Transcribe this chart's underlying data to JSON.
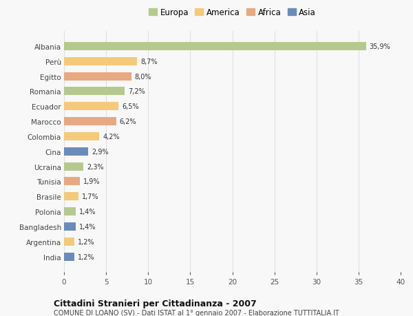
{
  "countries": [
    "Albania",
    "Perù",
    "Egitto",
    "Romania",
    "Ecuador",
    "Marocco",
    "Colombia",
    "Cina",
    "Ucraina",
    "Tunisia",
    "Brasile",
    "Polonia",
    "Bangladesh",
    "Argentina",
    "India"
  ],
  "values": [
    35.9,
    8.7,
    8.0,
    7.2,
    6.5,
    6.2,
    4.2,
    2.9,
    2.3,
    1.9,
    1.7,
    1.4,
    1.4,
    1.2,
    1.2
  ],
  "continents": [
    "Europa",
    "America",
    "Africa",
    "Europa",
    "America",
    "Africa",
    "America",
    "Asia",
    "Europa",
    "Africa",
    "America",
    "Europa",
    "Asia",
    "America",
    "Asia"
  ],
  "colors": {
    "Europa": "#b5c98e",
    "America": "#f5c97a",
    "Africa": "#e8a882",
    "Asia": "#6b8cba"
  },
  "legend_order": [
    "Europa",
    "America",
    "Africa",
    "Asia"
  ],
  "title": "Cittadini Stranieri per Cittadinanza - 2007",
  "subtitle": "COMUNE DI LOANO (SV) - Dati ISTAT al 1° gennaio 2007 - Elaborazione TUTTITALIA.IT",
  "xlim": [
    0,
    40
  ],
  "xticks": [
    0,
    5,
    10,
    15,
    20,
    25,
    30,
    35,
    40
  ],
  "bg_color": "#f8f8f8",
  "grid_color": "#e0e0e0",
  "bar_height": 0.55
}
